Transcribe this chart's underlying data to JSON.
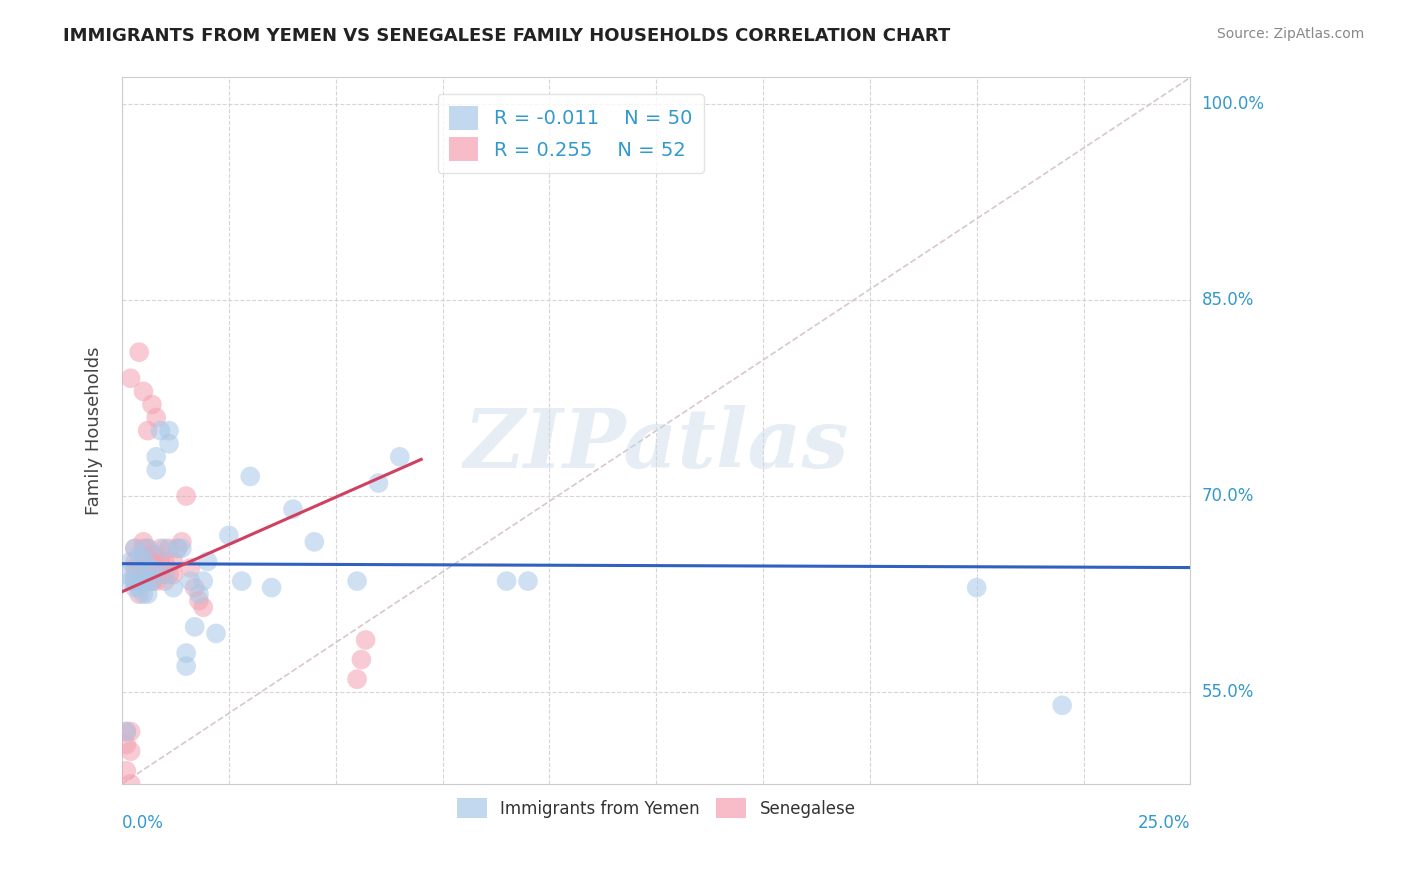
{
  "title": "IMMIGRANTS FROM YEMEN VS SENEGALESE FAMILY HOUSEHOLDS CORRELATION CHART",
  "source": "Source: ZipAtlas.com",
  "ylabel": "Family Households",
  "xlim": [
    0.0,
    0.25
  ],
  "ylim": [
    0.48,
    1.02
  ],
  "yticks": [
    0.55,
    0.7,
    0.85,
    1.0
  ],
  "ytick_labels": [
    "55.0%",
    "70.0%",
    "85.0%",
    "100.0%"
  ],
  "xticks": [
    0.0,
    0.025,
    0.05,
    0.075,
    0.1,
    0.125,
    0.15,
    0.175,
    0.2,
    0.225,
    0.25
  ],
  "blue_R": -0.011,
  "blue_N": 50,
  "pink_R": 0.255,
  "pink_N": 52,
  "blue_color": "#a8c8e8",
  "pink_color": "#f4a0b0",
  "blue_line_color": "#3060c0",
  "pink_line_color": "#d04060",
  "legend_text_color": "#3399cc",
  "legend_label_color": "#3399cc",
  "blue_scatter_x": [
    0.001,
    0.001,
    0.002,
    0.002,
    0.003,
    0.003,
    0.003,
    0.004,
    0.004,
    0.004,
    0.005,
    0.005,
    0.005,
    0.006,
    0.006,
    0.006,
    0.006,
    0.007,
    0.007,
    0.008,
    0.008,
    0.009,
    0.01,
    0.01,
    0.011,
    0.011,
    0.012,
    0.013,
    0.014,
    0.015,
    0.015,
    0.016,
    0.017,
    0.018,
    0.019,
    0.02,
    0.022,
    0.025,
    0.028,
    0.03,
    0.035,
    0.04,
    0.045,
    0.055,
    0.06,
    0.065,
    0.09,
    0.095,
    0.2,
    0.22
  ],
  "blue_scatter_y": [
    0.64,
    0.52,
    0.635,
    0.65,
    0.63,
    0.635,
    0.66,
    0.63,
    0.64,
    0.655,
    0.625,
    0.635,
    0.65,
    0.625,
    0.635,
    0.645,
    0.66,
    0.635,
    0.645,
    0.72,
    0.73,
    0.75,
    0.64,
    0.66,
    0.74,
    0.75,
    0.63,
    0.66,
    0.66,
    0.57,
    0.58,
    0.635,
    0.6,
    0.625,
    0.635,
    0.65,
    0.595,
    0.67,
    0.635,
    0.715,
    0.63,
    0.69,
    0.665,
    0.635,
    0.71,
    0.73,
    0.635,
    0.635,
    0.63,
    0.54
  ],
  "pink_scatter_x": [
    0.001,
    0.001,
    0.001,
    0.002,
    0.002,
    0.002,
    0.002,
    0.003,
    0.003,
    0.003,
    0.003,
    0.003,
    0.004,
    0.004,
    0.004,
    0.004,
    0.005,
    0.005,
    0.005,
    0.005,
    0.005,
    0.006,
    0.006,
    0.006,
    0.006,
    0.007,
    0.007,
    0.007,
    0.007,
    0.008,
    0.008,
    0.008,
    0.008,
    0.009,
    0.009,
    0.009,
    0.01,
    0.01,
    0.011,
    0.011,
    0.012,
    0.012,
    0.013,
    0.014,
    0.015,
    0.016,
    0.017,
    0.018,
    0.019,
    0.055,
    0.056,
    0.057
  ],
  "pink_scatter_y": [
    0.49,
    0.51,
    0.52,
    0.48,
    0.505,
    0.52,
    0.79,
    0.635,
    0.64,
    0.645,
    0.65,
    0.66,
    0.625,
    0.635,
    0.645,
    0.81,
    0.65,
    0.655,
    0.66,
    0.665,
    0.78,
    0.64,
    0.65,
    0.66,
    0.75,
    0.635,
    0.645,
    0.655,
    0.77,
    0.635,
    0.645,
    0.655,
    0.76,
    0.64,
    0.65,
    0.66,
    0.635,
    0.65,
    0.64,
    0.66,
    0.64,
    0.65,
    0.66,
    0.665,
    0.7,
    0.645,
    0.63,
    0.62,
    0.615,
    0.56,
    0.575,
    0.59
  ],
  "watermark": "ZIPatlas",
  "background_color": "#ffffff",
  "grid_color": "#cccccc"
}
